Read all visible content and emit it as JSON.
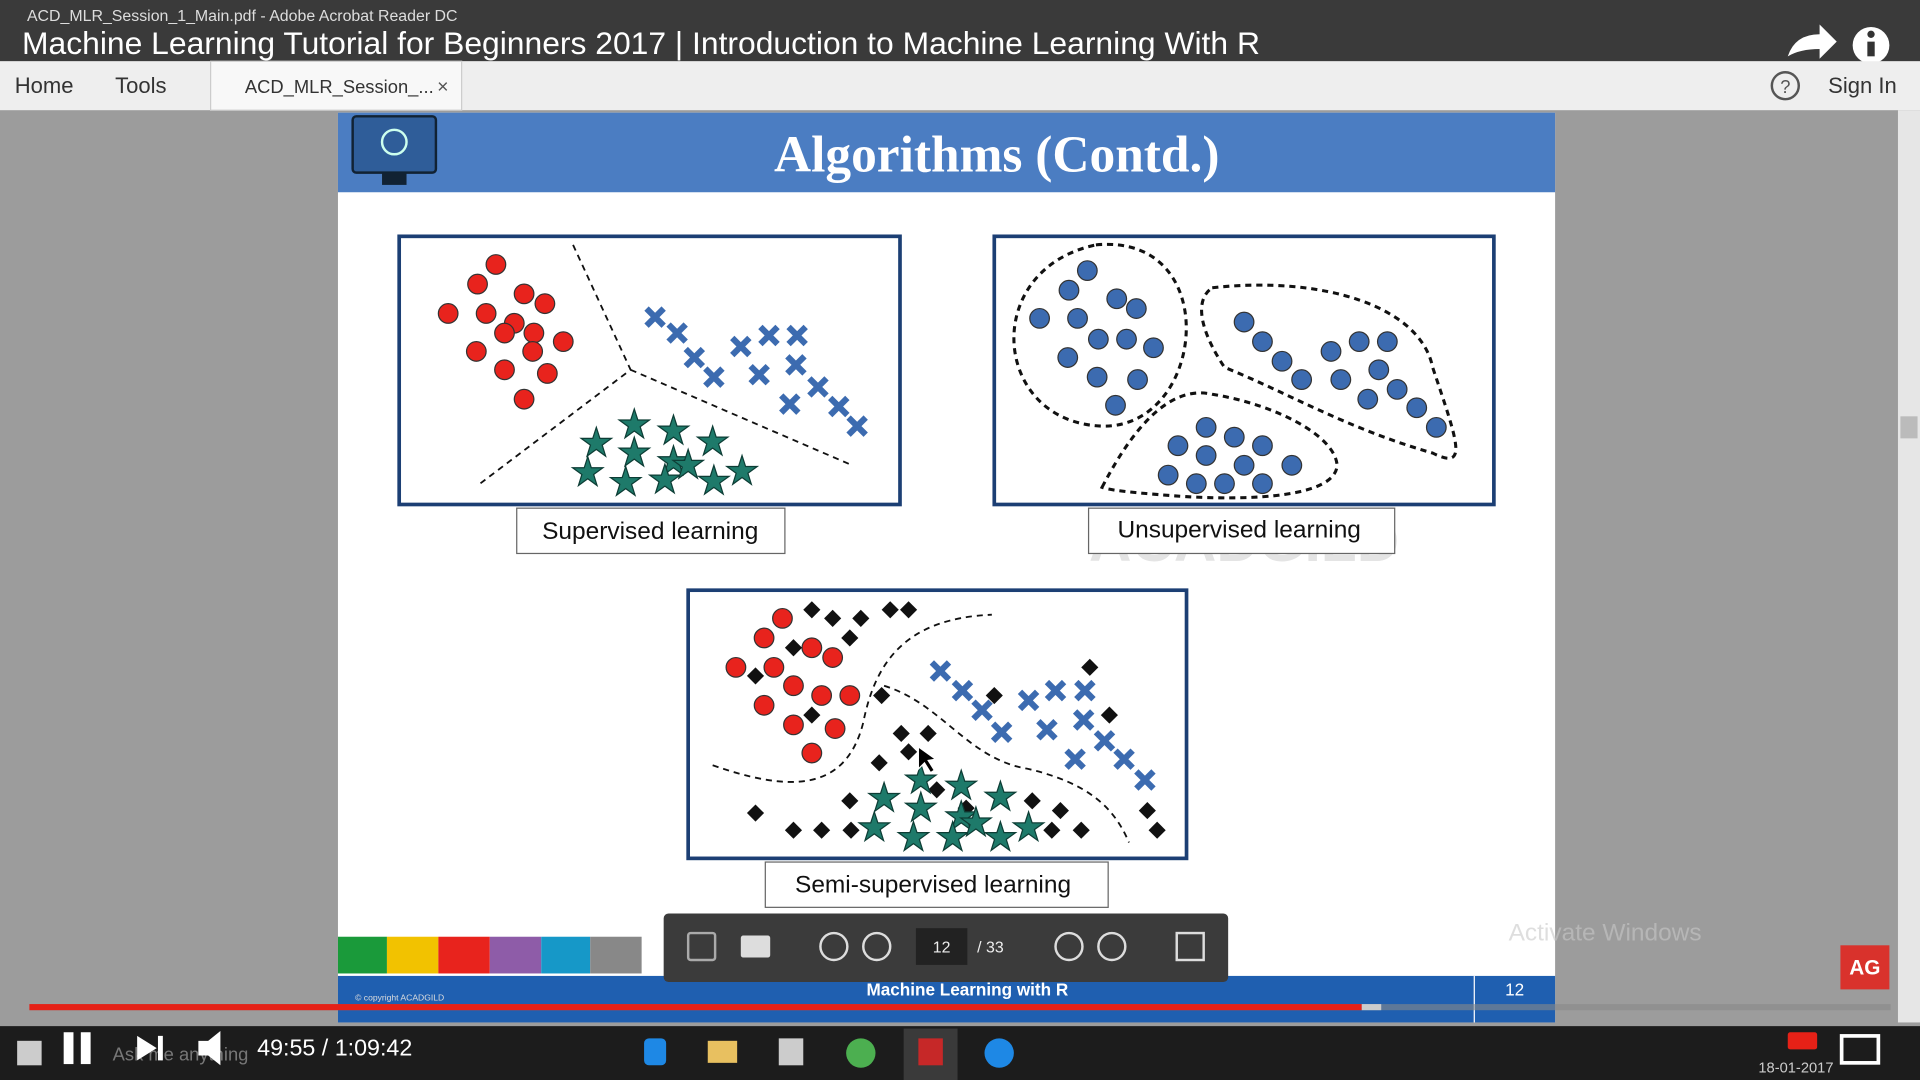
{
  "window_title": "ACD_MLR_Session_1_Main.pdf - Adobe Acrobat Reader DC",
  "video_title": "Machine Learning Tutorial for Beginners 2017 | Introduction to Machine Learning With R",
  "menu": [
    "Home",
    "Tools"
  ],
  "tab": "ACD_MLR_Session_...",
  "tab_close": "×",
  "help": "?",
  "sign_in": "Sign In",
  "slide": {
    "title": "Algorithms (Contd.)",
    "panels": [
      "Supervised learning",
      "Unsupervised learning",
      "Semi-supervised learning"
    ],
    "watermark": "ACADGILD",
    "copyright": "© copyright ACADGILD",
    "footer": "Machine Learning with R",
    "page": "12"
  },
  "toolbar": {
    "page": "12",
    "total": "/ 33"
  },
  "overlay": "Activate Windows",
  "logo": "AG",
  "player": {
    "time": "49:55 / 1:09:42"
  },
  "taskbar": {
    "search": "Ask me anything",
    "date": "18-01-2017"
  }
}
